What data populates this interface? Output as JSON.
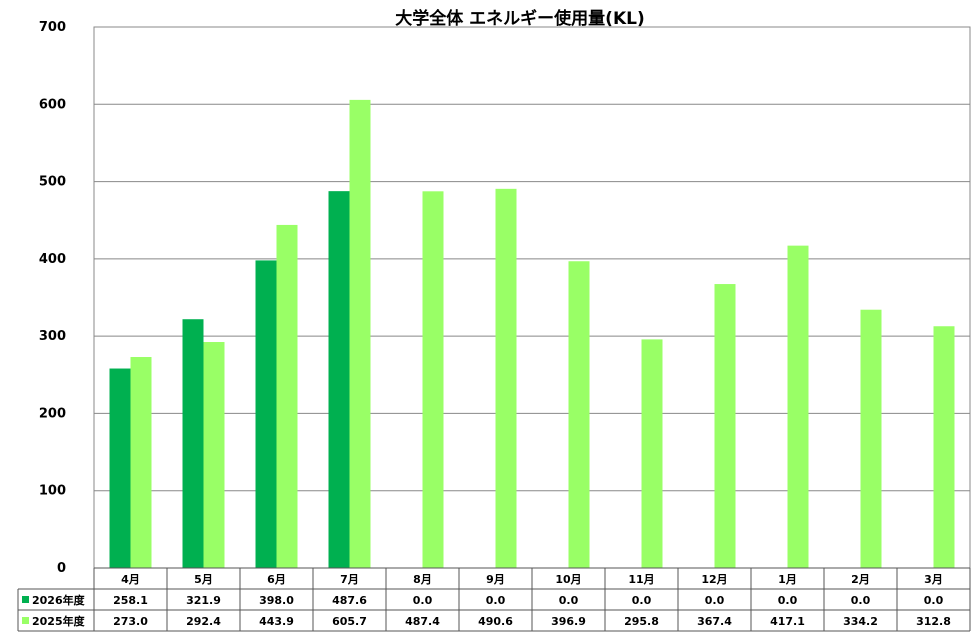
{
  "chart_data": {
    "type": "bar",
    "title": "大学全体 エネルギー使用量(KL)",
    "categories": [
      "4月",
      "5月",
      "6月",
      "7月",
      "8月",
      "9月",
      "10月",
      "11月",
      "12月",
      "1月",
      "2月",
      "3月"
    ],
    "series": [
      {
        "name": "2026年度",
        "color": "#00b050",
        "values": [
          258.1,
          321.9,
          398.0,
          487.6,
          0.0,
          0.0,
          0.0,
          0.0,
          0.0,
          0.0,
          0.0,
          0.0
        ],
        "labels": [
          "258.1",
          "321.9",
          "398.0",
          "487.6",
          "0.0",
          "0.0",
          "0.0",
          "0.0",
          "0.0",
          "0.0",
          "0.0",
          "0.0"
        ]
      },
      {
        "name": "2025年度",
        "color": "#99ff66",
        "values": [
          273.0,
          292.4,
          443.9,
          605.7,
          487.4,
          490.6,
          396.9,
          295.8,
          367.4,
          417.1,
          334.2,
          312.8
        ],
        "labels": [
          "273.0",
          "292.4",
          "443.9",
          "605.7",
          "487.4",
          "490.6",
          "396.9",
          "295.8",
          "367.4",
          "417.1",
          "334.2",
          "312.8"
        ]
      }
    ],
    "ylim": [
      0,
      700
    ],
    "yticks": [
      "0",
      "100",
      "200",
      "300",
      "400",
      "500",
      "600",
      "700"
    ],
    "grid": true,
    "legend": "data-table"
  }
}
